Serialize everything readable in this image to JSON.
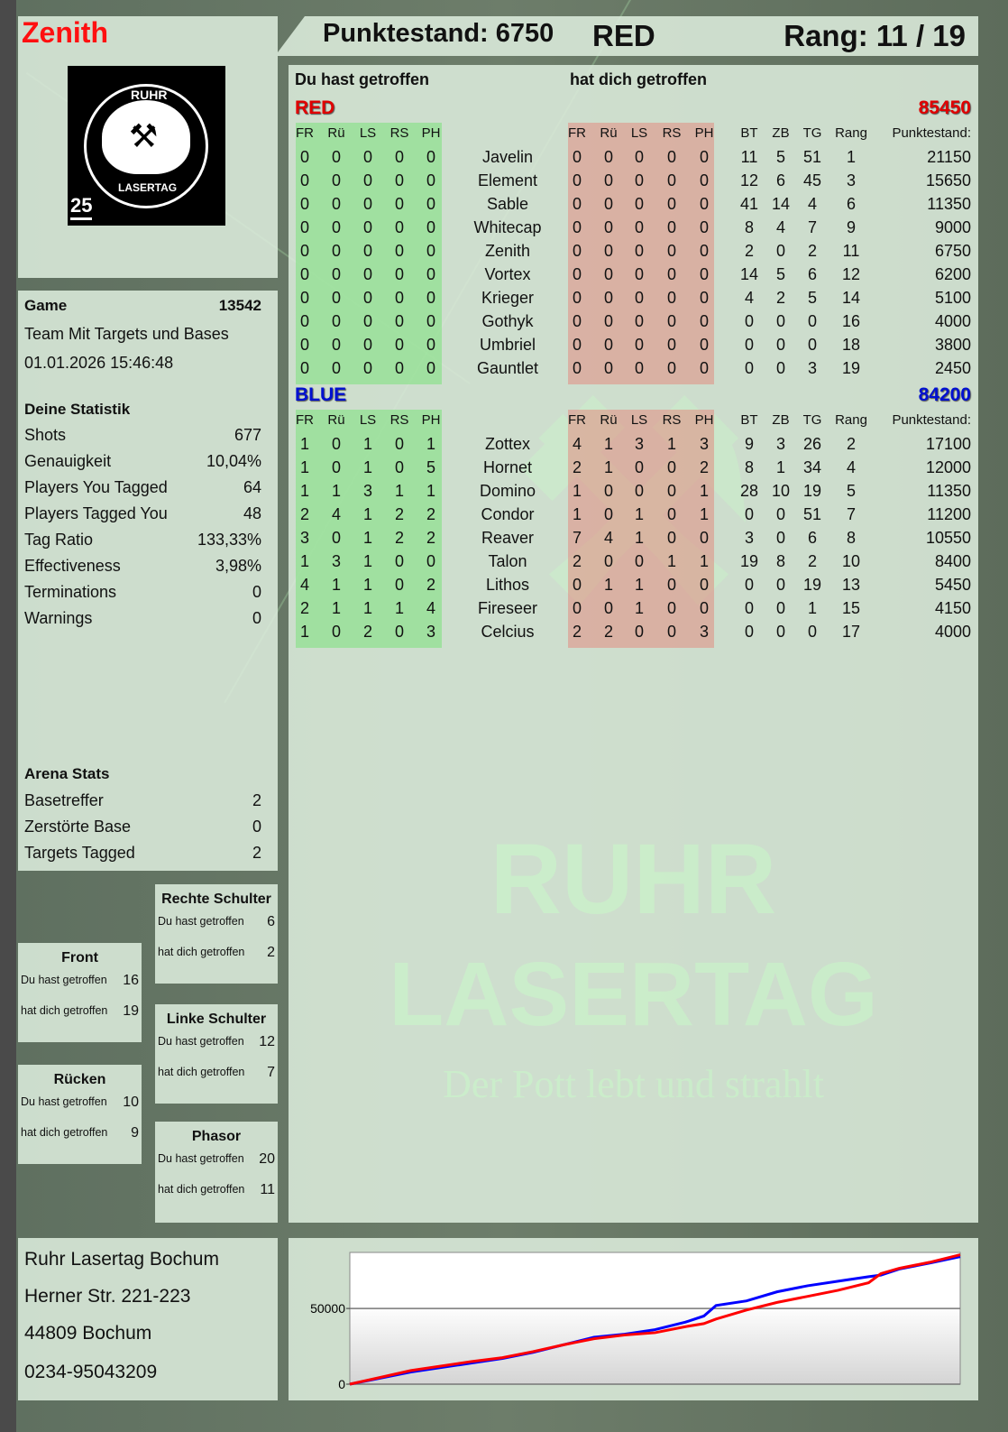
{
  "header": {
    "player": "Zenith",
    "score_label": "Punktestand: 6750",
    "team": "RED",
    "rank_label": "Rang: 11 / 19"
  },
  "logo": {
    "text_top": "RUHR",
    "text_bottom": "LASERTAG",
    "badge": "25"
  },
  "watermark": {
    "line1": "RUHR",
    "line2": "LASERTAG",
    "slogan": "Der Pott lebt und strahlt"
  },
  "game": {
    "label": "Game",
    "number": "13542",
    "mode": "Team Mit Targets und Bases",
    "datetime": "01.01.2026 15:46:48"
  },
  "stats": {
    "title": "Deine Statistik",
    "items": [
      {
        "label": "Shots",
        "value": "677"
      },
      {
        "label": "Genauigkeit",
        "value": "10,04%"
      },
      {
        "label": "Players You Tagged",
        "value": "64"
      },
      {
        "label": "Players Tagged You",
        "value": "48"
      },
      {
        "label": "Tag Ratio",
        "value": "133,33%"
      },
      {
        "label": "Effectiveness",
        "value": "3,98%"
      },
      {
        "label": "Terminations",
        "value": "0"
      },
      {
        "label": "Warnings",
        "value": "0"
      }
    ]
  },
  "arena": {
    "title": "Arena Stats",
    "items": [
      {
        "label": "Basetreffer",
        "value": "2"
      },
      {
        "label": "Zerstörte Base",
        "value": "0"
      },
      {
        "label": "Targets Tagged",
        "value": "2"
      }
    ]
  },
  "zones": [
    {
      "title": "Rechte Schulter",
      "hit_label": "Du hast getroffen",
      "hit": "6",
      "got_label": "hat dich getroffen",
      "got": "2"
    },
    {
      "title": "Front",
      "hit_label": "Du hast getroffen",
      "hit": "16",
      "got_label": "hat dich getroffen",
      "got": "19"
    },
    {
      "title": "Linke Schulter",
      "hit_label": "Du hast getroffen",
      "hit": "12",
      "got_label": "hat dich getroffen",
      "got": "7"
    },
    {
      "title": "Rücken",
      "hit_label": "Du hast getroffen",
      "hit": "10",
      "got_label": "hat dich getroffen",
      "got": "9"
    },
    {
      "title": "Phasor",
      "hit_label": "Du hast getroffen",
      "hit": "20",
      "got_label": "hat dich getroffen",
      "got": "11"
    }
  ],
  "address": [
    "Ruhr Lasertag Bochum",
    "Herner Str. 221-223",
    "44809 Bochum",
    "0234-95043209"
  ],
  "scoreboard": {
    "you_hit_label": "Du hast getroffen",
    "hit_you_label": "hat dich getroffen",
    "hit_cols": [
      "FR",
      "Rü",
      "LS",
      "RS",
      "PH"
    ],
    "stat_cols": [
      "BT",
      "ZB",
      "TG",
      "Rang",
      "Punktestand:"
    ],
    "teams": [
      {
        "name": "RED",
        "total": "85450",
        "color": "#e00000",
        "players": [
          {
            "name": "Javelin",
            "hit": [
              0,
              0,
              0,
              0,
              0
            ],
            "got": [
              0,
              0,
              0,
              0,
              0
            ],
            "stats": [
              11,
              5,
              51,
              1,
              21150
            ]
          },
          {
            "name": "Element",
            "hit": [
              0,
              0,
              0,
              0,
              0
            ],
            "got": [
              0,
              0,
              0,
              0,
              0
            ],
            "stats": [
              12,
              6,
              45,
              3,
              15650
            ]
          },
          {
            "name": "Sable",
            "hit": [
              0,
              0,
              0,
              0,
              0
            ],
            "got": [
              0,
              0,
              0,
              0,
              0
            ],
            "stats": [
              41,
              14,
              4,
              6,
              11350
            ]
          },
          {
            "name": "Whitecap",
            "hit": [
              0,
              0,
              0,
              0,
              0
            ],
            "got": [
              0,
              0,
              0,
              0,
              0
            ],
            "stats": [
              8,
              4,
              7,
              9,
              9000
            ]
          },
          {
            "name": "Zenith",
            "hit": [
              0,
              0,
              0,
              0,
              0
            ],
            "got": [
              0,
              0,
              0,
              0,
              0
            ],
            "stats": [
              2,
              0,
              2,
              11,
              6750
            ]
          },
          {
            "name": "Vortex",
            "hit": [
              0,
              0,
              0,
              0,
              0
            ],
            "got": [
              0,
              0,
              0,
              0,
              0
            ],
            "stats": [
              14,
              5,
              6,
              12,
              6200
            ]
          },
          {
            "name": "Krieger",
            "hit": [
              0,
              0,
              0,
              0,
              0
            ],
            "got": [
              0,
              0,
              0,
              0,
              0
            ],
            "stats": [
              4,
              2,
              5,
              14,
              5100
            ]
          },
          {
            "name": "Gothyk",
            "hit": [
              0,
              0,
              0,
              0,
              0
            ],
            "got": [
              0,
              0,
              0,
              0,
              0
            ],
            "stats": [
              0,
              0,
              0,
              16,
              4000
            ]
          },
          {
            "name": "Umbriel",
            "hit": [
              0,
              0,
              0,
              0,
              0
            ],
            "got": [
              0,
              0,
              0,
              0,
              0
            ],
            "stats": [
              0,
              0,
              0,
              18,
              3800
            ]
          },
          {
            "name": "Gauntlet",
            "hit": [
              0,
              0,
              0,
              0,
              0
            ],
            "got": [
              0,
              0,
              0,
              0,
              0
            ],
            "stats": [
              0,
              0,
              3,
              19,
              2450
            ]
          }
        ]
      },
      {
        "name": "BLUE",
        "total": "84200",
        "color": "#0010d0",
        "players": [
          {
            "name": "Zottex",
            "hit": [
              1,
              0,
              1,
              0,
              1
            ],
            "got": [
              4,
              1,
              3,
              1,
              3
            ],
            "stats": [
              9,
              3,
              26,
              2,
              17100
            ]
          },
          {
            "name": "Hornet",
            "hit": [
              1,
              0,
              1,
              0,
              5
            ],
            "got": [
              2,
              1,
              0,
              0,
              2
            ],
            "stats": [
              8,
              1,
              34,
              4,
              12000
            ]
          },
          {
            "name": "Domino",
            "hit": [
              1,
              1,
              3,
              1,
              1
            ],
            "got": [
              1,
              0,
              0,
              0,
              1
            ],
            "stats": [
              28,
              10,
              19,
              5,
              11350
            ]
          },
          {
            "name": "Condor",
            "hit": [
              2,
              4,
              1,
              2,
              2
            ],
            "got": [
              1,
              0,
              1,
              0,
              1
            ],
            "stats": [
              0,
              0,
              51,
              7,
              11200
            ]
          },
          {
            "name": "Reaver",
            "hit": [
              3,
              0,
              1,
              2,
              2
            ],
            "got": [
              7,
              4,
              1,
              0,
              0
            ],
            "stats": [
              3,
              0,
              6,
              8,
              10550
            ]
          },
          {
            "name": "Talon",
            "hit": [
              1,
              3,
              1,
              0,
              0
            ],
            "got": [
              2,
              0,
              0,
              1,
              1
            ],
            "stats": [
              19,
              8,
              2,
              10,
              8400
            ]
          },
          {
            "name": "Lithos",
            "hit": [
              4,
              1,
              1,
              0,
              2
            ],
            "got": [
              0,
              1,
              1,
              0,
              0
            ],
            "stats": [
              0,
              0,
              19,
              13,
              5450
            ]
          },
          {
            "name": "Fireseer",
            "hit": [
              2,
              1,
              1,
              1,
              4
            ],
            "got": [
              0,
              0,
              1,
              0,
              0
            ],
            "stats": [
              0,
              0,
              1,
              15,
              4150
            ]
          },
          {
            "name": "Celcius",
            "hit": [
              1,
              0,
              2,
              0,
              3
            ],
            "got": [
              2,
              2,
              0,
              0,
              3
            ],
            "stats": [
              0,
              0,
              0,
              17,
              4000
            ]
          }
        ]
      }
    ]
  },
  "chart_data": {
    "type": "line",
    "title": "",
    "xlabel": "",
    "ylabel": "",
    "ylim": [
      0,
      87000
    ],
    "yticks": [
      0,
      50000
    ],
    "grid": true,
    "x": [
      0,
      10,
      20,
      25,
      30,
      35,
      40,
      45,
      50,
      55,
      58,
      60,
      65,
      70,
      75,
      80,
      85,
      87,
      90,
      95,
      100
    ],
    "series": [
      {
        "color": "#0000ff",
        "values": [
          0,
          8000,
          14000,
          17000,
          21000,
          26000,
          31000,
          33000,
          36000,
          41000,
          45000,
          52000,
          55000,
          61000,
          65000,
          68000,
          71000,
          72000,
          76000,
          80000,
          84200
        ]
      },
      {
        "color": "#ff0000",
        "values": [
          0,
          9000,
          15000,
          17500,
          21500,
          26000,
          30000,
          32500,
          34000,
          38000,
          40000,
          43000,
          49000,
          54000,
          58000,
          62000,
          67000,
          73000,
          76500,
          80500,
          85450
        ]
      }
    ]
  }
}
